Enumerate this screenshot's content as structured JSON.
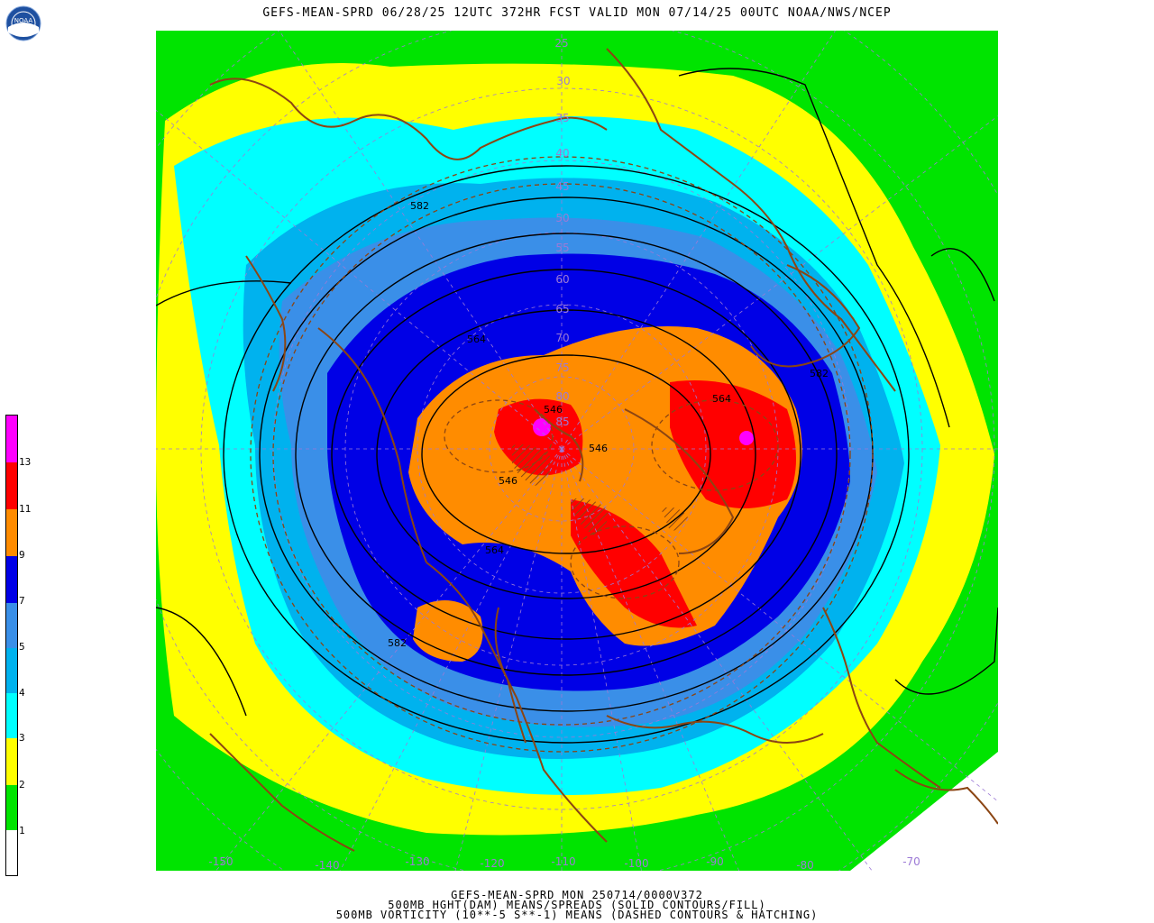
{
  "header": {
    "title": "GEFS-MEAN-SPRD 06/28/25 12UTC 372HR FCST VALID MON 07/14/25 00UTC NOAA/NWS/NCEP",
    "logo_text": "NOAA"
  },
  "map": {
    "projection": "north-polar-stereographic",
    "lat_labels": [
      "25",
      "30",
      "35",
      "40",
      "45",
      "50",
      "55",
      "60",
      "65",
      "70",
      "75",
      "80",
      "85"
    ],
    "lon_labels": [
      "-150",
      "-140",
      "-130",
      "-120",
      "-110",
      "-100",
      "-90",
      "-80",
      "-70"
    ],
    "contour_labels": [
      "582",
      "564",
      "546",
      "546",
      "564",
      "546",
      "564",
      "582",
      "582"
    ],
    "colors": {
      "white": "#ffffff",
      "green": "#00e400",
      "yellow": "#ffff00",
      "cyan": "#00ffff",
      "sky": "#00b2ee",
      "blue_mid": "#3a8fe8",
      "blue_dark": "#0000e6",
      "orange": "#ff8c00",
      "red": "#ff0000",
      "magenta": "#ff00ff",
      "coast": "#8b4513",
      "grid": "#9c7ad6"
    }
  },
  "colorbar": {
    "levels": [
      "1",
      "2",
      "3",
      "4",
      "5",
      "7",
      "9",
      "11",
      "13"
    ]
  },
  "footer": {
    "line1": "GEFS-MEAN-SPRD MON 250714/0000V372",
    "line2": "500MB HGHT(DAM) MEANS/SPREADS (SOLID CONTOURS/FILL)",
    "line3": "500MB VORTICITY (10**-5 S**-1) MEANS (DASHED CONTOURS & HATCHING)"
  }
}
